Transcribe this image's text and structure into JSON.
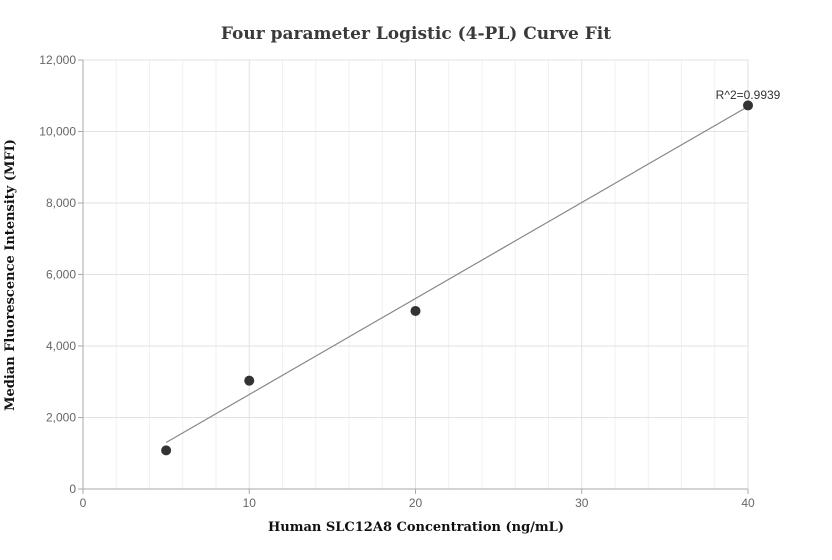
{
  "chart_data": {
    "type": "scatter",
    "title": "Four parameter Logistic (4-PL) Curve Fit",
    "xlabel": "Human SLC12A8 Concentration (ng/mL)",
    "ylabel": "Median Fluorescence Intensity (MFI)",
    "xlim": [
      0,
      40
    ],
    "ylim": [
      0,
      12000
    ],
    "xticks": [
      0,
      10,
      20,
      30,
      40
    ],
    "xtick_labels": [
      "0",
      "10",
      "20",
      "30",
      "40"
    ],
    "yticks": [
      0,
      2000,
      4000,
      6000,
      8000,
      10000,
      12000
    ],
    "ytick_labels": [
      "0",
      "2,000",
      "4,000",
      "6,000",
      "8,000",
      "10,000",
      "12,000"
    ],
    "grid": true,
    "points": {
      "x": [
        5,
        10,
        20,
        40
      ],
      "y": [
        1080,
        3030,
        4980,
        10730
      ]
    },
    "fit_line": {
      "x": [
        5,
        40
      ],
      "y": [
        1300,
        10700
      ]
    },
    "annotation": "R^2=0.9939",
    "colors": {
      "points": "#333333",
      "fit_line": "#888888",
      "grid": "#e6e6e6",
      "axis": "#aaaaaa"
    }
  }
}
